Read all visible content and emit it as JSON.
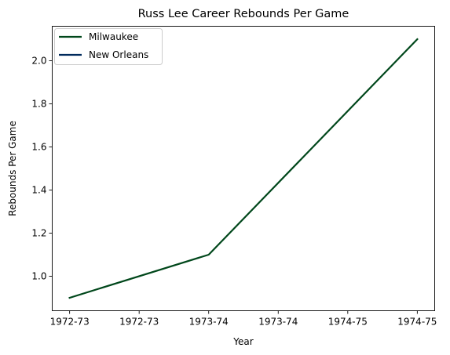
{
  "chart_data": {
    "type": "line",
    "title": "Russ Lee Career Rebounds Per Game",
    "xlabel": "Year",
    "ylabel": "Rebounds Per Game",
    "x_tick_labels": [
      "1972-73",
      "1972-73",
      "1973-74",
      "1973-74",
      "1974-75",
      "1974-75"
    ],
    "x": [
      0,
      1,
      2,
      3,
      4,
      5
    ],
    "xlim": [
      -0.25,
      5.25
    ],
    "ylim": [
      0.84,
      2.16
    ],
    "y_ticks": [
      1.0,
      1.2,
      1.4,
      1.6,
      1.8,
      2.0
    ],
    "y_tick_labels": [
      "1.0",
      "1.2",
      "1.4",
      "1.6",
      "1.8",
      "2.0"
    ],
    "legend_position": "top-left",
    "series": [
      {
        "name": "Milwaukee",
        "color": "#00471B",
        "x": [
          0,
          2,
          5
        ],
        "values": [
          0.9,
          1.1,
          2.1
        ]
      },
      {
        "name": "New Orleans",
        "color": "#002B5C",
        "x": [],
        "values": []
      }
    ]
  }
}
